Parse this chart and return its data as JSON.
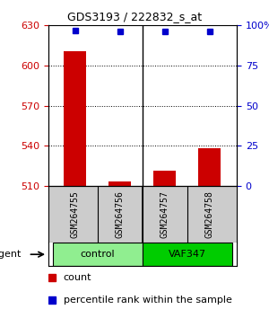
{
  "title": "GDS3193 / 222832_s_at",
  "samples": [
    "GSM264755",
    "GSM264756",
    "GSM264757",
    "GSM264758"
  ],
  "counts": [
    611,
    513,
    521,
    538
  ],
  "percentile_ranks": [
    97,
    96,
    96,
    96
  ],
  "ylim_left": [
    510,
    630
  ],
  "ylim_right": [
    0,
    100
  ],
  "yticks_left": [
    510,
    540,
    570,
    600,
    630
  ],
  "yticks_right": [
    0,
    25,
    50,
    75,
    100
  ],
  "ytick_labels_right": [
    "0",
    "25",
    "50",
    "75",
    "100%"
  ],
  "groups": [
    {
      "label": "control",
      "samples": [
        0,
        1
      ],
      "color": "#90EE90"
    },
    {
      "label": "VAF347",
      "samples": [
        2,
        3
      ],
      "color": "#00CC00"
    }
  ],
  "bar_color": "#CC0000",
  "dot_color": "#0000CC",
  "agent_label": "agent",
  "legend_count_label": "count",
  "legend_pct_label": "percentile rank within the sample",
  "grid_color": "#000000",
  "background_color": "#ffffff",
  "plot_bg_color": "#ffffff",
  "sample_box_color": "#cccccc"
}
